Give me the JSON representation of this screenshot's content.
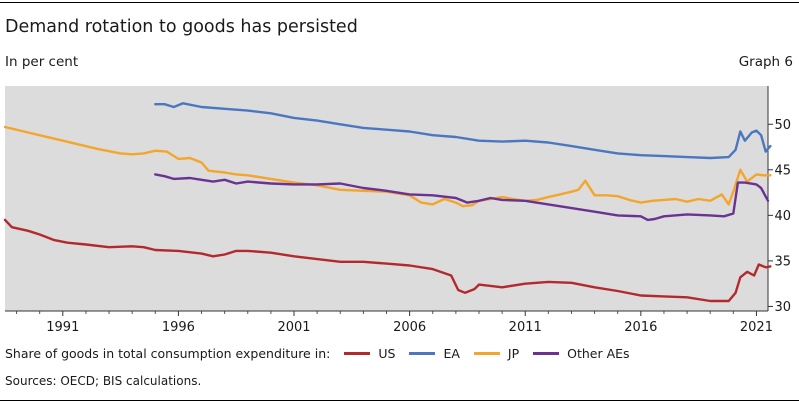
{
  "title": "Demand rotation to goods has persisted",
  "subtitle": "In per cent",
  "graph_label": "Graph 6",
  "source": "Sources: OECD; BIS calculations.",
  "legend_prefix": "Share of goods in total consumption expenditure in:",
  "colors": {
    "plot_bg": "#dcdcdc",
    "US": "#b22a2e",
    "EA": "#4a77c0",
    "JP": "#f4a52b",
    "OtherAEs": "#6a3291"
  },
  "chart_data": {
    "type": "line",
    "title": "Demand rotation to goods has persisted",
    "ylabel": "In per cent",
    "xlim": [
      1988.5,
      2021.5
    ],
    "ylim": [
      29.5,
      54.2
    ],
    "y_ticks": [
      30,
      35,
      40,
      45,
      50
    ],
    "y_tick_labels": [
      "30",
      "35",
      "40",
      "45",
      "50"
    ],
    "x_ticks": [
      1991,
      1996,
      2001,
      2006,
      2011,
      2016,
      2021
    ],
    "x_tick_labels": [
      "1991",
      "1996",
      "2001",
      "2006",
      "2011",
      "2016",
      "2021"
    ],
    "series": [
      {
        "name": "US",
        "color": "#b22a2e",
        "points": [
          [
            1988.5,
            39.5
          ],
          [
            1988.8,
            38.7
          ],
          [
            1989.5,
            38.3
          ],
          [
            1990,
            37.9
          ],
          [
            1990.6,
            37.3
          ],
          [
            1991.2,
            37
          ],
          [
            1992,
            36.8
          ],
          [
            1993,
            36.5
          ],
          [
            1994,
            36.6
          ],
          [
            1994.5,
            36.5
          ],
          [
            1995,
            36.2
          ],
          [
            1996,
            36.1
          ],
          [
            1997,
            35.8
          ],
          [
            1997.5,
            35.5
          ],
          [
            1998,
            35.7
          ],
          [
            1998.5,
            36.1
          ],
          [
            1999,
            36.1
          ],
          [
            2000,
            35.9
          ],
          [
            2001,
            35.5
          ],
          [
            2002,
            35.2
          ],
          [
            2003,
            34.9
          ],
          [
            2004,
            34.9
          ],
          [
            2005,
            34.7
          ],
          [
            2006,
            34.5
          ],
          [
            2007,
            34.1
          ],
          [
            2007.8,
            33.4
          ],
          [
            2008.1,
            31.8
          ],
          [
            2008.4,
            31.5
          ],
          [
            2008.8,
            31.9
          ],
          [
            2009,
            32.4
          ],
          [
            2010,
            32.1
          ],
          [
            2011,
            32.5
          ],
          [
            2012,
            32.7
          ],
          [
            2013,
            32.6
          ],
          [
            2014,
            32.1
          ],
          [
            2015,
            31.7
          ],
          [
            2016,
            31.2
          ],
          [
            2017,
            31.1
          ],
          [
            2018,
            31
          ],
          [
            2019,
            30.6
          ],
          [
            2019.8,
            30.6
          ],
          [
            2020.1,
            31.5
          ],
          [
            2020.3,
            33.2
          ],
          [
            2020.6,
            33.8
          ],
          [
            2020.9,
            33.4
          ],
          [
            2021.1,
            34.6
          ],
          [
            2021.4,
            34.3
          ],
          [
            2021.6,
            34.4
          ]
        ]
      },
      {
        "name": "EA",
        "color": "#4a77c0",
        "points": [
          [
            1995,
            52.2
          ],
          [
            1995.4,
            52.2
          ],
          [
            1995.8,
            51.9
          ],
          [
            1996.2,
            52.3
          ],
          [
            1997,
            51.9
          ],
          [
            1998,
            51.7
          ],
          [
            1999,
            51.5
          ],
          [
            2000,
            51.2
          ],
          [
            2001,
            50.7
          ],
          [
            2002,
            50.4
          ],
          [
            2003,
            50
          ],
          [
            2004,
            49.6
          ],
          [
            2005,
            49.4
          ],
          [
            2006,
            49.2
          ],
          [
            2007,
            48.8
          ],
          [
            2008,
            48.6
          ],
          [
            2009,
            48.2
          ],
          [
            2010,
            48.1
          ],
          [
            2011,
            48.2
          ],
          [
            2012,
            48
          ],
          [
            2013,
            47.6
          ],
          [
            2014,
            47.2
          ],
          [
            2015,
            46.8
          ],
          [
            2016,
            46.6
          ],
          [
            2017,
            46.5
          ],
          [
            2018,
            46.4
          ],
          [
            2019,
            46.3
          ],
          [
            2019.8,
            46.4
          ],
          [
            2020.1,
            47.2
          ],
          [
            2020.3,
            49.2
          ],
          [
            2020.5,
            48.2
          ],
          [
            2020.8,
            49.1
          ],
          [
            2021,
            49.3
          ],
          [
            2021.2,
            48.8
          ],
          [
            2021.4,
            47
          ],
          [
            2021.6,
            47.6
          ]
        ]
      },
      {
        "name": "JP",
        "color": "#f4a52b",
        "points": [
          [
            1988.5,
            49.7
          ],
          [
            1989.5,
            49.1
          ],
          [
            1990.5,
            48.5
          ],
          [
            1991.5,
            47.9
          ],
          [
            1992.5,
            47.3
          ],
          [
            1993.5,
            46.8
          ],
          [
            1994,
            46.7
          ],
          [
            1994.5,
            46.8
          ],
          [
            1995,
            47.1
          ],
          [
            1995.5,
            47
          ],
          [
            1996,
            46.2
          ],
          [
            1996.5,
            46.3
          ],
          [
            1997,
            45.8
          ],
          [
            1997.3,
            44.9
          ],
          [
            1998,
            44.7
          ],
          [
            1998.5,
            44.5
          ],
          [
            1999,
            44.4
          ],
          [
            2000,
            44
          ],
          [
            2001,
            43.6
          ],
          [
            2002,
            43.3
          ],
          [
            2003,
            42.8
          ],
          [
            2004,
            42.7
          ],
          [
            2005,
            42.6
          ],
          [
            2006,
            42.2
          ],
          [
            2006.5,
            41.4
          ],
          [
            2007,
            41.2
          ],
          [
            2007.5,
            41.8
          ],
          [
            2008,
            41.4
          ],
          [
            2008.3,
            41
          ],
          [
            2008.7,
            41.1
          ],
          [
            2009,
            41.6
          ],
          [
            2009.5,
            41.8
          ],
          [
            2010,
            42
          ],
          [
            2010.5,
            41.8
          ],
          [
            2011,
            41.6
          ],
          [
            2011.5,
            41.7
          ],
          [
            2012,
            42
          ],
          [
            2012.5,
            42.3
          ],
          [
            2013,
            42.6
          ],
          [
            2013.3,
            42.8
          ],
          [
            2013.6,
            43.8
          ],
          [
            2014,
            42.2
          ],
          [
            2014.5,
            42.2
          ],
          [
            2015,
            42.1
          ],
          [
            2015.5,
            41.7
          ],
          [
            2016,
            41.4
          ],
          [
            2016.5,
            41.6
          ],
          [
            2017,
            41.7
          ],
          [
            2017.5,
            41.8
          ],
          [
            2018,
            41.5
          ],
          [
            2018.5,
            41.8
          ],
          [
            2019,
            41.6
          ],
          [
            2019.5,
            42.3
          ],
          [
            2019.8,
            41.2
          ],
          [
            2020,
            42.6
          ],
          [
            2020.3,
            45
          ],
          [
            2020.6,
            43.7
          ],
          [
            2021,
            44.5
          ],
          [
            2021.3,
            44.4
          ],
          [
            2021.6,
            44.4
          ]
        ]
      },
      {
        "name": "Other AEs",
        "color": "#6a3291",
        "points": [
          [
            1995,
            44.5
          ],
          [
            1995.4,
            44.3
          ],
          [
            1995.8,
            44
          ],
          [
            1996.5,
            44.1
          ],
          [
            1997,
            43.9
          ],
          [
            1997.5,
            43.7
          ],
          [
            1998,
            43.9
          ],
          [
            1998.5,
            43.5
          ],
          [
            1999,
            43.7
          ],
          [
            2000,
            43.5
          ],
          [
            2001,
            43.4
          ],
          [
            2002,
            43.4
          ],
          [
            2003,
            43.5
          ],
          [
            2004,
            43
          ],
          [
            2005,
            42.7
          ],
          [
            2006,
            42.3
          ],
          [
            2007,
            42.2
          ],
          [
            2008,
            41.9
          ],
          [
            2008.5,
            41.4
          ],
          [
            2009,
            41.6
          ],
          [
            2009.5,
            41.9
          ],
          [
            2010,
            41.7
          ],
          [
            2011,
            41.6
          ],
          [
            2012,
            41.2
          ],
          [
            2013,
            40.8
          ],
          [
            2014,
            40.4
          ],
          [
            2015,
            40
          ],
          [
            2016,
            39.9
          ],
          [
            2016.3,
            39.5
          ],
          [
            2016.6,
            39.6
          ],
          [
            2017,
            39.9
          ],
          [
            2018,
            40.1
          ],
          [
            2019,
            40
          ],
          [
            2019.6,
            39.9
          ],
          [
            2020,
            40.2
          ],
          [
            2020.2,
            43.6
          ],
          [
            2020.5,
            43.6
          ],
          [
            2021,
            43.4
          ],
          [
            2021.2,
            43
          ],
          [
            2021.5,
            41.6
          ]
        ]
      }
    ]
  }
}
